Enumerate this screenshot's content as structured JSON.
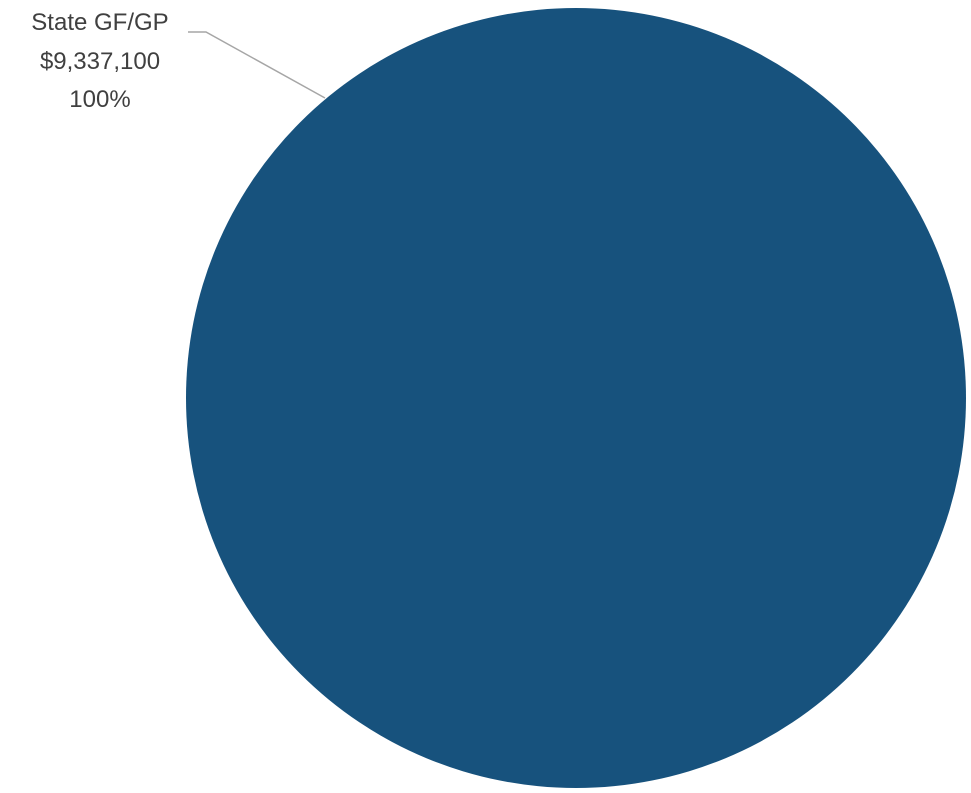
{
  "chart_data": {
    "type": "pie",
    "title": "",
    "slices": [
      {
        "label": "State GF/GP",
        "value": 9337100,
        "value_text": "$9,337,100",
        "percent_text": "100%",
        "color": "#17527D"
      }
    ],
    "legend": "none",
    "label_style": "outside with leader line"
  }
}
